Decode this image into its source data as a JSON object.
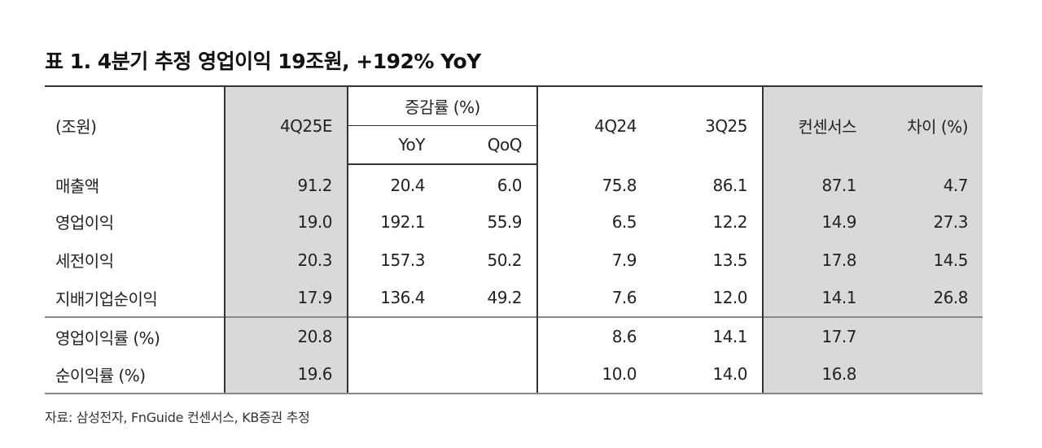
{
  "title": "표 1. 4분기 추정 영업이익 19조원, +192% YoY",
  "table": {
    "unit_label": "(조원)",
    "headers": {
      "q4_25e": "4Q25E",
      "change_group": "증감률 (%)",
      "yoy": "YoY",
      "qoq": "QoQ",
      "q4_24": "4Q24",
      "q3_25": "3Q25",
      "consensus": "컨센서스",
      "diff": "차이 (%)"
    },
    "rows": [
      {
        "label": "매출액",
        "q4_25e": "91.2",
        "yoy": "20.4",
        "qoq": "6.0",
        "q4_24": "75.8",
        "q3_25": "86.1",
        "consensus": "87.1",
        "diff": "4.7"
      },
      {
        "label": "영업이익",
        "q4_25e": "19.0",
        "yoy": "192.1",
        "qoq": "55.9",
        "q4_24": "6.5",
        "q3_25": "12.2",
        "consensus": "14.9",
        "diff": "27.3"
      },
      {
        "label": "세전이익",
        "q4_25e": "20.3",
        "yoy": "157.3",
        "qoq": "50.2",
        "q4_24": "7.9",
        "q3_25": "13.5",
        "consensus": "17.8",
        "diff": "14.5"
      },
      {
        "label": "지배기업순이익",
        "q4_25e": "17.9",
        "yoy": "136.4",
        "qoq": "49.2",
        "q4_24": "7.6",
        "q3_25": "12.0",
        "consensus": "14.1",
        "diff": "26.8"
      },
      {
        "label": "영업이익률 (%)",
        "q4_25e": "20.8",
        "yoy": "",
        "qoq": "",
        "q4_24": "8.6",
        "q3_25": "14.1",
        "consensus": "17.7",
        "diff": ""
      },
      {
        "label": "순이익률 (%)",
        "q4_25e": "19.6",
        "yoy": "",
        "qoq": "",
        "q4_24": "10.0",
        "q3_25": "14.0",
        "consensus": "16.8",
        "diff": ""
      }
    ]
  },
  "footnote": "자료: 삼성전자, FnGuide 컨센서스, KB증권 추정",
  "colors": {
    "highlight_column_bg": "#d9d9d9",
    "rule": "#333333"
  }
}
